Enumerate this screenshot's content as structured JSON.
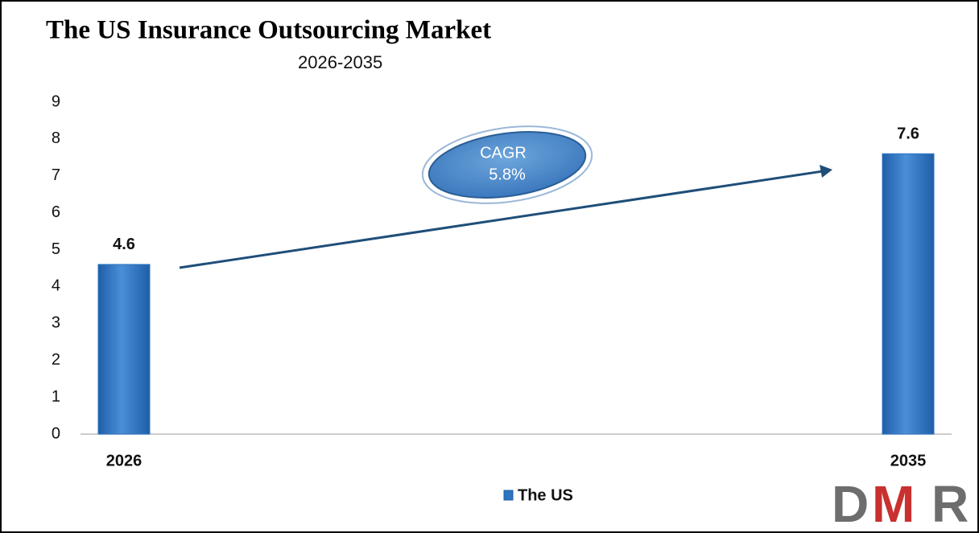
{
  "chart_data": {
    "type": "bar",
    "title": "The US Insurance Outsourcing Market",
    "subtitle": "2026-2035",
    "categories": [
      "2026",
      "2035"
    ],
    "series": [
      {
        "name": "The US",
        "color": "#2e75c0",
        "values": [
          4.6,
          7.6
        ]
      }
    ],
    "ylim": [
      0,
      9
    ],
    "yticks": [
      0,
      1,
      2,
      3,
      4,
      5,
      6,
      7,
      8,
      9
    ],
    "grid": false,
    "legend": "bottom",
    "annotation": {
      "label": "CAGR",
      "value": "5.8%"
    },
    "logo": [
      "D",
      "M",
      "R"
    ]
  }
}
